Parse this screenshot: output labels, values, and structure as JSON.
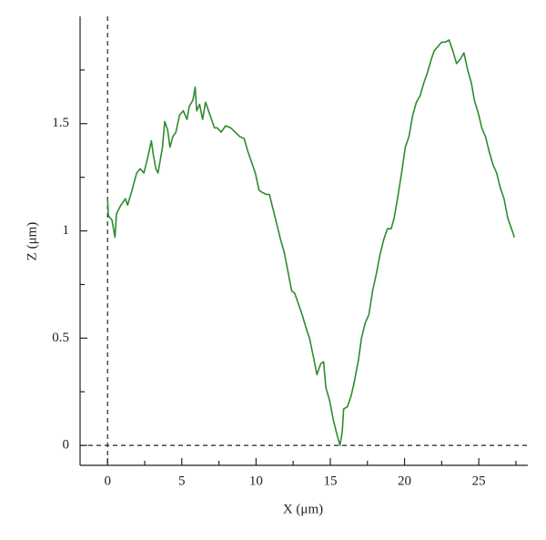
{
  "chart_data": {
    "type": "line",
    "xlabel": "X (μm)",
    "ylabel": "Z (μm)",
    "color": "#2e8b2e",
    "xlim": [
      -1.85,
      28.3
    ],
    "ylim": [
      -0.093,
      2.0
    ],
    "xticks": [
      0,
      5,
      10,
      15,
      20,
      25
    ],
    "xminor": [
      2.5,
      7.5,
      12.5,
      17.5,
      22.5,
      27.5
    ],
    "yticks": [
      0,
      0.5,
      1,
      1.5
    ],
    "yminor": [
      0.25,
      0.75,
      1.25,
      1.75
    ],
    "reference_x": 0,
    "reference_y": 0,
    "x": [
      0,
      0.06,
      0.3,
      0.5,
      0.6,
      0.9,
      1.2,
      1.35,
      1.65,
      1.96,
      2.2,
      2.45,
      2.7,
      2.95,
      3.07,
      3.25,
      3.4,
      3.7,
      3.85,
      4.05,
      4.2,
      4.4,
      4.6,
      4.85,
      5.1,
      5.35,
      5.5,
      5.75,
      5.9,
      6.0,
      6.2,
      6.4,
      6.6,
      6.9,
      7.2,
      7.4,
      7.65,
      7.95,
      8.3,
      8.6,
      8.9,
      9.2,
      9.45,
      9.7,
      9.95,
      10.2,
      10.4,
      10.7,
      10.9,
      11.15,
      11.4,
      11.65,
      11.9,
      12.15,
      12.4,
      12.6,
      12.9,
      13.1,
      13.4,
      13.6,
      13.9,
      14.1,
      14.35,
      14.55,
      14.7,
      14.95,
      15.2,
      15.45,
      15.65,
      15.8,
      15.9,
      16.15,
      16.4,
      16.6,
      16.9,
      17.1,
      17.35,
      17.6,
      17.85,
      18.1,
      18.35,
      18.6,
      18.85,
      19.1,
      19.3,
      19.55,
      19.8,
      20.05,
      20.3,
      20.55,
      20.8,
      21.05,
      21.3,
      21.55,
      21.8,
      22.0,
      22.25,
      22.5,
      22.75,
      23.0,
      23.25,
      23.5,
      23.75,
      24.0,
      24.25,
      24.5,
      24.7,
      25.0,
      25.2,
      25.45,
      25.7,
      25.95,
      26.2,
      26.45,
      26.7,
      26.95,
      27.2,
      27.4
    ],
    "values": [
      1.15,
      1.07,
      1.05,
      0.97,
      1.08,
      1.12,
      1.15,
      1.12,
      1.19,
      1.27,
      1.29,
      1.27,
      1.34,
      1.42,
      1.36,
      1.29,
      1.27,
      1.39,
      1.51,
      1.47,
      1.39,
      1.44,
      1.46,
      1.54,
      1.56,
      1.52,
      1.58,
      1.61,
      1.67,
      1.56,
      1.59,
      1.52,
      1.6,
      1.54,
      1.48,
      1.48,
      1.46,
      1.49,
      1.48,
      1.46,
      1.44,
      1.43,
      1.37,
      1.32,
      1.27,
      1.19,
      1.18,
      1.17,
      1.17,
      1.1,
      1.03,
      0.96,
      0.9,
      0.81,
      0.72,
      0.71,
      0.65,
      0.61,
      0.54,
      0.5,
      0.4,
      0.33,
      0.38,
      0.39,
      0.27,
      0.21,
      0.12,
      0.05,
      0.0,
      0.06,
      0.17,
      0.18,
      0.23,
      0.29,
      0.4,
      0.5,
      0.57,
      0.61,
      0.72,
      0.8,
      0.89,
      0.96,
      1.01,
      1.01,
      1.06,
      1.16,
      1.27,
      1.39,
      1.44,
      1.54,
      1.6,
      1.63,
      1.69,
      1.74,
      1.8,
      1.84,
      1.86,
      1.88,
      1.88,
      1.89,
      1.84,
      1.78,
      1.8,
      1.83,
      1.75,
      1.69,
      1.61,
      1.54,
      1.48,
      1.44,
      1.37,
      1.31,
      1.27,
      1.2,
      1.15,
      1.06,
      1.01,
      0.97
    ]
  }
}
